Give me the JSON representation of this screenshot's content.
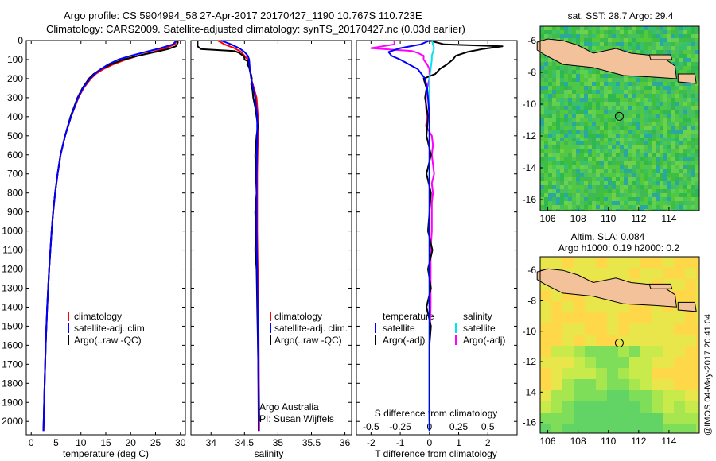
{
  "header": {
    "line1": "Argo profile: CS 5904994_58 27-Apr-2017 20170427_1190 10.767S 110.723E",
    "line2": "Climatology: CARS2009. Satellite-adjusted climatology: synTS_20170427.nc (0.03d earlier)"
  },
  "side_stamp": "@IMOS 04-May-2017 20:41:04",
  "colors": {
    "climatology": "#ff0000",
    "satellite": "#0000ff",
    "argo": "#000000",
    "salinity_satellite": "#00e5ee",
    "salinity_argo": "#ff00ff",
    "land": "#f3c29b"
  },
  "map_top": {
    "title": "sat. SST: 28.7 Argo: 29.4"
  },
  "map_bottom": {
    "title1": "Altim. SLA: 0.084",
    "title2": "Argo h1000: 0.19 h2000: 0.2"
  },
  "chart_data": [
    {
      "id": "temperature",
      "type": "line",
      "xlabel": "temperature (deg C)",
      "ylabel": "",
      "xlim": [
        -1,
        31
      ],
      "ylim": [
        2070,
        0
      ],
      "xticks": [
        "0",
        "5",
        "10",
        "15",
        "20",
        "25",
        "30"
      ],
      "yticks": [
        "0",
        "100",
        "200",
        "300",
        "400",
        "500",
        "600",
        "700",
        "800",
        "900",
        "1000",
        "1100",
        "1200",
        "1300",
        "1400",
        "1500",
        "1600",
        "1700",
        "1800",
        "1900",
        "2000"
      ],
      "legend": [
        "climatology",
        "satellite-adj. clim.",
        "Argo(..raw -QC)"
      ],
      "series": [
        {
          "name": "climatology",
          "depth": [
            0,
            20,
            40,
            60,
            80,
            100,
            125,
            150,
            175,
            200,
            250,
            300,
            400,
            500,
            600,
            700,
            800,
            900,
            1000,
            1200,
            1400,
            1600,
            1800,
            2000,
            2050
          ],
          "values": [
            29.2,
            28.9,
            27,
            24.5,
            21.5,
            19,
            16.5,
            14.5,
            13,
            12,
            10.5,
            9.5,
            8,
            6.8,
            5.9,
            5.3,
            4.8,
            4.4,
            4.1,
            3.6,
            3.2,
            2.9,
            2.7,
            2.5,
            2.45
          ]
        },
        {
          "name": "satellite-adj. clim.",
          "depth": [
            0,
            20,
            40,
            60,
            80,
            100,
            125,
            150,
            175,
            200,
            250,
            300,
            400,
            500,
            600,
            700,
            800,
            900,
            1000,
            1200,
            1400,
            1600,
            1800,
            2000,
            2050
          ],
          "values": [
            29.2,
            28.5,
            26,
            23,
            20,
            17.5,
            15.5,
            14,
            12.8,
            11.8,
            10.4,
            9.4,
            8,
            6.8,
            5.9,
            5.3,
            4.8,
            4.4,
            4.1,
            3.6,
            3.2,
            2.9,
            2.7,
            2.5,
            2.45
          ]
        },
        {
          "name": "Argo(..raw -QC)",
          "depth": [
            0,
            10,
            20,
            30,
            45,
            60,
            80,
            100,
            125,
            150,
            175,
            200,
            250,
            300,
            400,
            500,
            600,
            700,
            800,
            900,
            1000,
            1200,
            1400,
            1600,
            1800,
            2000,
            2050
          ],
          "values": [
            29.4,
            29.5,
            29.3,
            29.1,
            27.5,
            25,
            21.5,
            18.5,
            16,
            14,
            12.6,
            11.6,
            10.3,
            9.3,
            7.9,
            6.8,
            5.9,
            5.3,
            4.8,
            4.4,
            4.1,
            3.6,
            3.2,
            2.9,
            2.7,
            2.5,
            2.45
          ]
        }
      ]
    },
    {
      "id": "salinity",
      "type": "line",
      "xlabel": "salinity",
      "ylabel": "",
      "xlim": [
        33.7,
        36.1
      ],
      "ylim": [
        2070,
        0
      ],
      "xticks": [
        "34",
        "34.5",
        "35",
        "35.5",
        "36"
      ],
      "legend": [
        "climatology",
        "satellite-adj. clim.",
        "Argo(..raw -QC)"
      ],
      "annotation": [
        "Argo Australia",
        "PI: Susan Wijffels"
      ],
      "series": [
        {
          "name": "climatology",
          "depth": [
            0,
            20,
            40,
            60,
            80,
            100,
            150,
            200,
            300,
            400,
            500,
            700,
            1000,
            1500,
            2000,
            2050
          ],
          "values": [
            34.1,
            34.2,
            34.35,
            34.45,
            34.5,
            34.55,
            34.58,
            34.6,
            34.68,
            34.7,
            34.7,
            34.69,
            34.69,
            34.71,
            34.72,
            34.72
          ]
        },
        {
          "name": "satellite-adj. clim.",
          "depth": [
            0,
            20,
            40,
            60,
            80,
            100,
            150,
            200,
            300,
            400,
            500,
            700,
            1000,
            1500,
            2000,
            2050
          ],
          "values": [
            34.15,
            34.3,
            34.42,
            34.5,
            34.55,
            34.57,
            34.58,
            34.6,
            34.66,
            34.69,
            34.69,
            34.68,
            34.68,
            34.7,
            34.71,
            34.71
          ]
        },
        {
          "name": "Argo(..raw -QC)",
          "depth": [
            0,
            30,
            45,
            55,
            65,
            80,
            90,
            100,
            110,
            125,
            140,
            160,
            180,
            200,
            230,
            260,
            300,
            350,
            400,
            450,
            500,
            600,
            700,
            800,
            900,
            1000,
            1100,
            1200,
            1400,
            1600,
            1800,
            2000
          ],
          "values": [
            33.8,
            33.8,
            33.85,
            34.35,
            34.42,
            34.48,
            34.5,
            34.5,
            34.56,
            34.54,
            34.57,
            34.58,
            34.6,
            34.61,
            34.6,
            34.62,
            34.63,
            34.66,
            34.68,
            34.7,
            34.68,
            34.66,
            34.67,
            34.68,
            34.66,
            34.67,
            34.66,
            34.68,
            34.69,
            34.7,
            34.71,
            34.72
          ]
        }
      ]
    },
    {
      "id": "difference",
      "type": "line",
      "xlabel": "T difference from climatology",
      "xlabel_top": "S difference from climatology",
      "ylabel": "",
      "xlim": [
        -2.5,
        3
      ],
      "ylim": [
        2070,
        0
      ],
      "xticks": [
        "-2",
        "-1",
        "0",
        "1",
        "2"
      ],
      "xticks_top": [
        "-0.5",
        "-0.25",
        "0",
        "0.25",
        "0.5"
      ],
      "legend_t": [
        "temperature",
        "satellite",
        "Argo(-adj)"
      ],
      "legend_s": [
        "salinity",
        "satellite",
        "Argo(-adj)"
      ],
      "series": [
        {
          "name": "temperature satellite",
          "depth": [
            0,
            20,
            40,
            60,
            80,
            100,
            125,
            150,
            200,
            250,
            300,
            400,
            500,
            700,
            1000,
            1500,
            2000,
            2050
          ],
          "values": [
            0,
            -0.3,
            -1,
            -1.4,
            -1.3,
            -1,
            -0.7,
            -0.4,
            -0.15,
            -0.08,
            -0.05,
            0,
            0,
            0,
            0,
            0,
            0,
            0
          ]
        },
        {
          "name": "temperature Argo(-adj)",
          "depth": [
            0,
            20,
            30,
            45,
            60,
            80,
            100,
            125,
            150,
            175,
            200,
            250,
            300,
            350,
            400,
            500,
            600,
            700,
            800,
            900,
            1000,
            1100,
            1200,
            1300,
            1400,
            1500,
            1600,
            1700,
            1800,
            1900,
            2000
          ],
          "values": [
            0,
            0.5,
            2.5,
            1.8,
            1.3,
            0.9,
            0.8,
            0.6,
            0.35,
            0.2,
            -0.2,
            -0.1,
            -0.15,
            -0.1,
            -0.05,
            -0.1,
            0.05,
            -0.1,
            0.05,
            0,
            -0.05,
            0.1,
            -0.05,
            0.05,
            -0.1,
            0.05,
            0,
            0,
            0,
            0,
            0
          ]
        },
        {
          "name": "salinity satellite",
          "depth": [
            0,
            20,
            40,
            60,
            80,
            100,
            150,
            200,
            300,
            500,
            1000,
            1500,
            2000,
            2050
          ],
          "values": [
            0.02,
            0.03,
            0.04,
            0.03,
            0.02,
            0.02,
            0.01,
            0,
            0,
            0,
            0,
            0,
            0,
            0
          ]
        },
        {
          "name": "salinity Argo(-adj)",
          "depth": [
            0,
            20,
            40,
            55,
            65,
            80,
            100,
            125,
            150,
            200,
            250,
            300,
            350,
            400,
            450,
            500,
            550,
            600,
            650,
            700,
            750,
            800,
            850,
            900,
            1000,
            1100,
            1200,
            1400,
            1600,
            1800,
            2000
          ],
          "values": [
            -0.3,
            -0.3,
            -0.5,
            -0.15,
            -0.1,
            -0.05,
            -0.05,
            -0.02,
            0,
            0,
            -0.02,
            -0.03,
            -0.03,
            -0.02,
            -0.03,
            0.02,
            0.03,
            0.02,
            0.03,
            0.04,
            0.02,
            0.03,
            0.02,
            0.02,
            0.02,
            0.01,
            0.01,
            0.01,
            0,
            0,
            0
          ]
        }
      ]
    },
    {
      "id": "sst_map",
      "type": "heatmap",
      "title": "sat. SST: 28.7 Argo: 29.4",
      "xlim": [
        105.5,
        116
      ],
      "ylim": [
        -16.7,
        -5.1
      ],
      "xticks": [
        "106",
        "108",
        "110",
        "112",
        "114"
      ],
      "yticks": [
        "-6",
        "-8",
        "-10",
        "-12",
        "-14",
        "-16"
      ],
      "argo_position": [
        110.72,
        -10.77
      ]
    },
    {
      "id": "sla_map",
      "type": "heatmap",
      "title": "Altim. SLA: 0.084",
      "subtitle": "Argo h1000: 0.19 h2000: 0.2",
      "xlim": [
        105.5,
        116
      ],
      "ylim": [
        -16.7,
        -5.1
      ],
      "xticks": [
        "106",
        "108",
        "110",
        "112",
        "114"
      ],
      "yticks": [
        "-6",
        "-8",
        "-10",
        "-12",
        "-14",
        "-16"
      ],
      "argo_position": [
        110.72,
        -10.77
      ]
    }
  ]
}
